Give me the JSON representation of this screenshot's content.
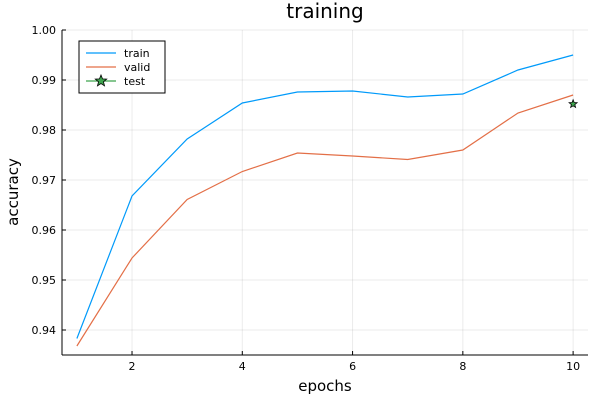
{
  "chart_data": {
    "type": "line",
    "title": "training",
    "xlabel": "epochs",
    "ylabel": "accuracy",
    "xlim": [
      0.73,
      10.27
    ],
    "ylim": [
      0.935,
      1.0
    ],
    "x_ticks": [
      2,
      4,
      6,
      8,
      10
    ],
    "y_ticks": [
      0.94,
      0.95,
      0.96,
      0.97,
      0.98,
      0.99,
      1.0
    ],
    "x_tick_labels": [
      "2",
      "4",
      "6",
      "8",
      "10"
    ],
    "y_tick_labels": [
      "0.94",
      "0.95",
      "0.96",
      "0.97",
      "0.98",
      "0.99",
      "1.00"
    ],
    "grid": true,
    "legend_position": "top-left",
    "series": [
      {
        "name": "train",
        "kind": "line",
        "color": "#009AFA",
        "x": [
          1,
          2,
          3,
          4,
          5,
          6,
          7,
          8,
          9,
          10
        ],
        "values": [
          0.9383,
          0.9668,
          0.9782,
          0.9854,
          0.9876,
          0.9878,
          0.9866,
          0.9872,
          0.992,
          0.995
        ]
      },
      {
        "name": "valid",
        "kind": "line",
        "color": "#E36F47",
        "x": [
          1,
          2,
          3,
          4,
          5,
          6,
          7,
          8,
          9,
          10
        ],
        "values": [
          0.9368,
          0.9544,
          0.9661,
          0.9717,
          0.9754,
          0.9748,
          0.9741,
          0.976,
          0.9834,
          0.987
        ]
      },
      {
        "name": "test",
        "kind": "marker",
        "marker": "star",
        "color": "#3EA44E",
        "x": [
          10
        ],
        "values": [
          0.9852
        ]
      }
    ]
  }
}
